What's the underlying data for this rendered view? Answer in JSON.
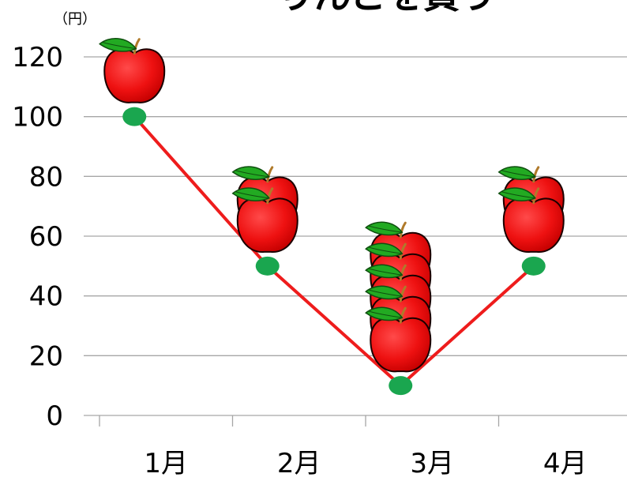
{
  "chart_data": {
    "type": "line",
    "title": "りんごを買う",
    "unit": "（円）",
    "categories": [
      "1月",
      "2月",
      "3月",
      "4月"
    ],
    "y_ticks": [
      "0",
      "20",
      "40",
      "60",
      "80",
      "100",
      "120"
    ],
    "ylim": [
      0,
      120
    ],
    "series": [
      {
        "values": [
          100,
          50,
          10,
          50
        ],
        "apples": [
          1,
          2,
          5,
          2
        ]
      }
    ],
    "grid": true,
    "colors": {
      "line": "#ee1c1c",
      "marker": "#1aa64f",
      "grid": "#a6a6a6",
      "apple": "#ee1111",
      "leaf": "#22aa22",
      "stem": "#b07a2a"
    }
  }
}
